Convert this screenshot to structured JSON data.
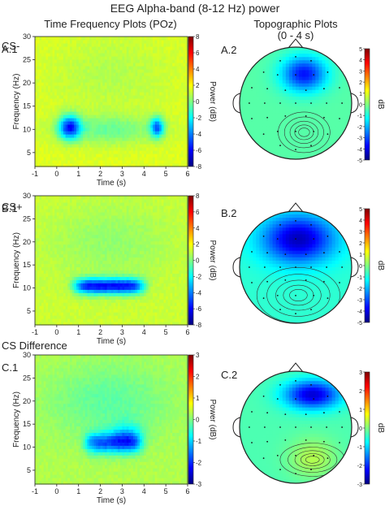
{
  "title": "EEG Alpha-band (8-12 Hz) power",
  "headers": {
    "time_frequency": "Time Frequency Plots (POz)",
    "topographic": "Topographic Plots",
    "topographic_sub": "(0 - 4 s)"
  },
  "colors": {
    "colormap": [
      "#00007f",
      "#0000ff",
      "#007fff",
      "#00ffff",
      "#7fff7f",
      "#ffff00",
      "#ff7f00",
      "#ff0000",
      "#7f0000"
    ]
  },
  "chart_data": [
    {
      "type": "heatmap",
      "row_label": "CS-",
      "panel_label": "A.1",
      "xlabel": "Time (s)",
      "ylabel": "Frequency (Hz)",
      "colorbar_label": "Power (dB)",
      "xlim": [
        -1,
        6
      ],
      "ylim": [
        2,
        30
      ],
      "clim": [
        -8,
        8
      ],
      "x_ticks": [
        "-1",
        "0",
        "1",
        "2",
        "3",
        "4",
        "5",
        "6"
      ],
      "y_ticks": [
        "5",
        "10",
        "15",
        "20",
        "25",
        "30"
      ],
      "colorbar_ticks": [
        "8",
        "6",
        "4",
        "2",
        "0",
        "-2",
        "-4",
        "-6",
        "-8"
      ],
      "baseline": 1.5,
      "blobs": [
        {
          "t": 0.6,
          "f": 10.5,
          "st": 0.35,
          "sf": 1.8,
          "a": -6.5
        },
        {
          "t": 2.4,
          "f": 10,
          "st": 1.6,
          "sf": 2.2,
          "a": -1.8
        },
        {
          "t": 4.6,
          "f": 10.5,
          "st": 0.22,
          "sf": 1.5,
          "a": -5.5
        },
        {
          "t": 2.5,
          "f": 22,
          "st": 2,
          "sf": 6,
          "a": -0.7
        }
      ]
    },
    {
      "type": "heatmap",
      "row_label": "CS+",
      "panel_label": "B.1",
      "xlabel": "Time (s)",
      "ylabel": "Frequency (Hz)",
      "colorbar_label": "Power (dB)",
      "xlim": [
        -1,
        6
      ],
      "ylim": [
        2,
        30
      ],
      "clim": [
        -8,
        8
      ],
      "x_ticks": [
        "-1",
        "0",
        "1",
        "2",
        "3",
        "4",
        "5",
        "6"
      ],
      "y_ticks": [
        "5",
        "10",
        "15",
        "20",
        "25",
        "30"
      ],
      "colorbar_ticks": [
        "8",
        "6",
        "4",
        "2",
        "0",
        "-2",
        "-4",
        "-6",
        "-8"
      ],
      "baseline": 1.2,
      "blobs": [
        {
          "t": 2.4,
          "f": 10.5,
          "st": 1.6,
          "sf": 1.7,
          "a": -7,
          "flat": true
        },
        {
          "t": 2.5,
          "f": 20,
          "st": 2,
          "sf": 6,
          "a": -0.9
        }
      ]
    },
    {
      "type": "heatmap",
      "row_label": "CS Difference",
      "panel_label": "C.1",
      "xlabel": "Time (s)",
      "ylabel": "Frequency (Hz)",
      "colorbar_label": "Power (dB)",
      "xlim": [
        -1,
        6
      ],
      "ylim": [
        2,
        30
      ],
      "clim": [
        -3,
        3
      ],
      "x_ticks": [
        "-1",
        "0",
        "1",
        "2",
        "3",
        "4",
        "5",
        "6"
      ],
      "y_ticks": [
        "5",
        "10",
        "15",
        "20",
        "25",
        "30"
      ],
      "colorbar_ticks": [
        "3",
        "2",
        "1",
        "0",
        "-1",
        "-2",
        "-3"
      ],
      "baseline": 0.3,
      "blobs": [
        {
          "t": 2.6,
          "f": 11,
          "st": 1.3,
          "sf": 2.2,
          "a": -1.9,
          "flat": true
        },
        {
          "t": 3.2,
          "f": 13,
          "st": 0.5,
          "sf": 2.0,
          "a": -0.8
        },
        {
          "t": 2.4,
          "f": 20,
          "st": 2,
          "sf": 6,
          "a": -0.5
        }
      ]
    },
    {
      "type": "heatmap",
      "subtype": "topographic",
      "panel_label": "A.2",
      "colorbar_label": "dB",
      "clim": [
        -5,
        5
      ],
      "colorbar_ticks": [
        "5",
        "4",
        "3",
        "2",
        "1",
        "0",
        "-1",
        "-2",
        "-3",
        "-4",
        "-5"
      ],
      "baseline": -0.4,
      "sources": [
        {
          "x": 0.15,
          "y": 0.52,
          "sx": 0.28,
          "sy": 0.22,
          "a": -3.2
        }
      ]
    },
    {
      "type": "heatmap",
      "subtype": "topographic",
      "panel_label": "B.2",
      "colorbar_label": "dB",
      "clim": [
        -5,
        5
      ],
      "colorbar_ticks": [
        "5",
        "4",
        "3",
        "2",
        "1",
        "0",
        "-1",
        "-2",
        "-3",
        "-4",
        "-5"
      ],
      "baseline": -0.8,
      "sources": [
        {
          "x": 0.05,
          "y": 0.5,
          "sx": 0.45,
          "sy": 0.3,
          "a": -3.6
        }
      ]
    },
    {
      "type": "heatmap",
      "subtype": "topographic",
      "panel_label": "C.2",
      "colorbar_label": "dB",
      "clim": [
        -3,
        3
      ],
      "colorbar_ticks": [
        "3",
        "2",
        "1",
        "0",
        "-1",
        "-2",
        "-3"
      ],
      "baseline": -0.3,
      "sources": [
        {
          "x": 0.3,
          "y": 0.58,
          "sx": 0.35,
          "sy": 0.18,
          "a": -2.2
        },
        {
          "x": 0.3,
          "y": -0.55,
          "sx": 0.3,
          "sy": 0.25,
          "a": 0.6
        }
      ]
    }
  ]
}
